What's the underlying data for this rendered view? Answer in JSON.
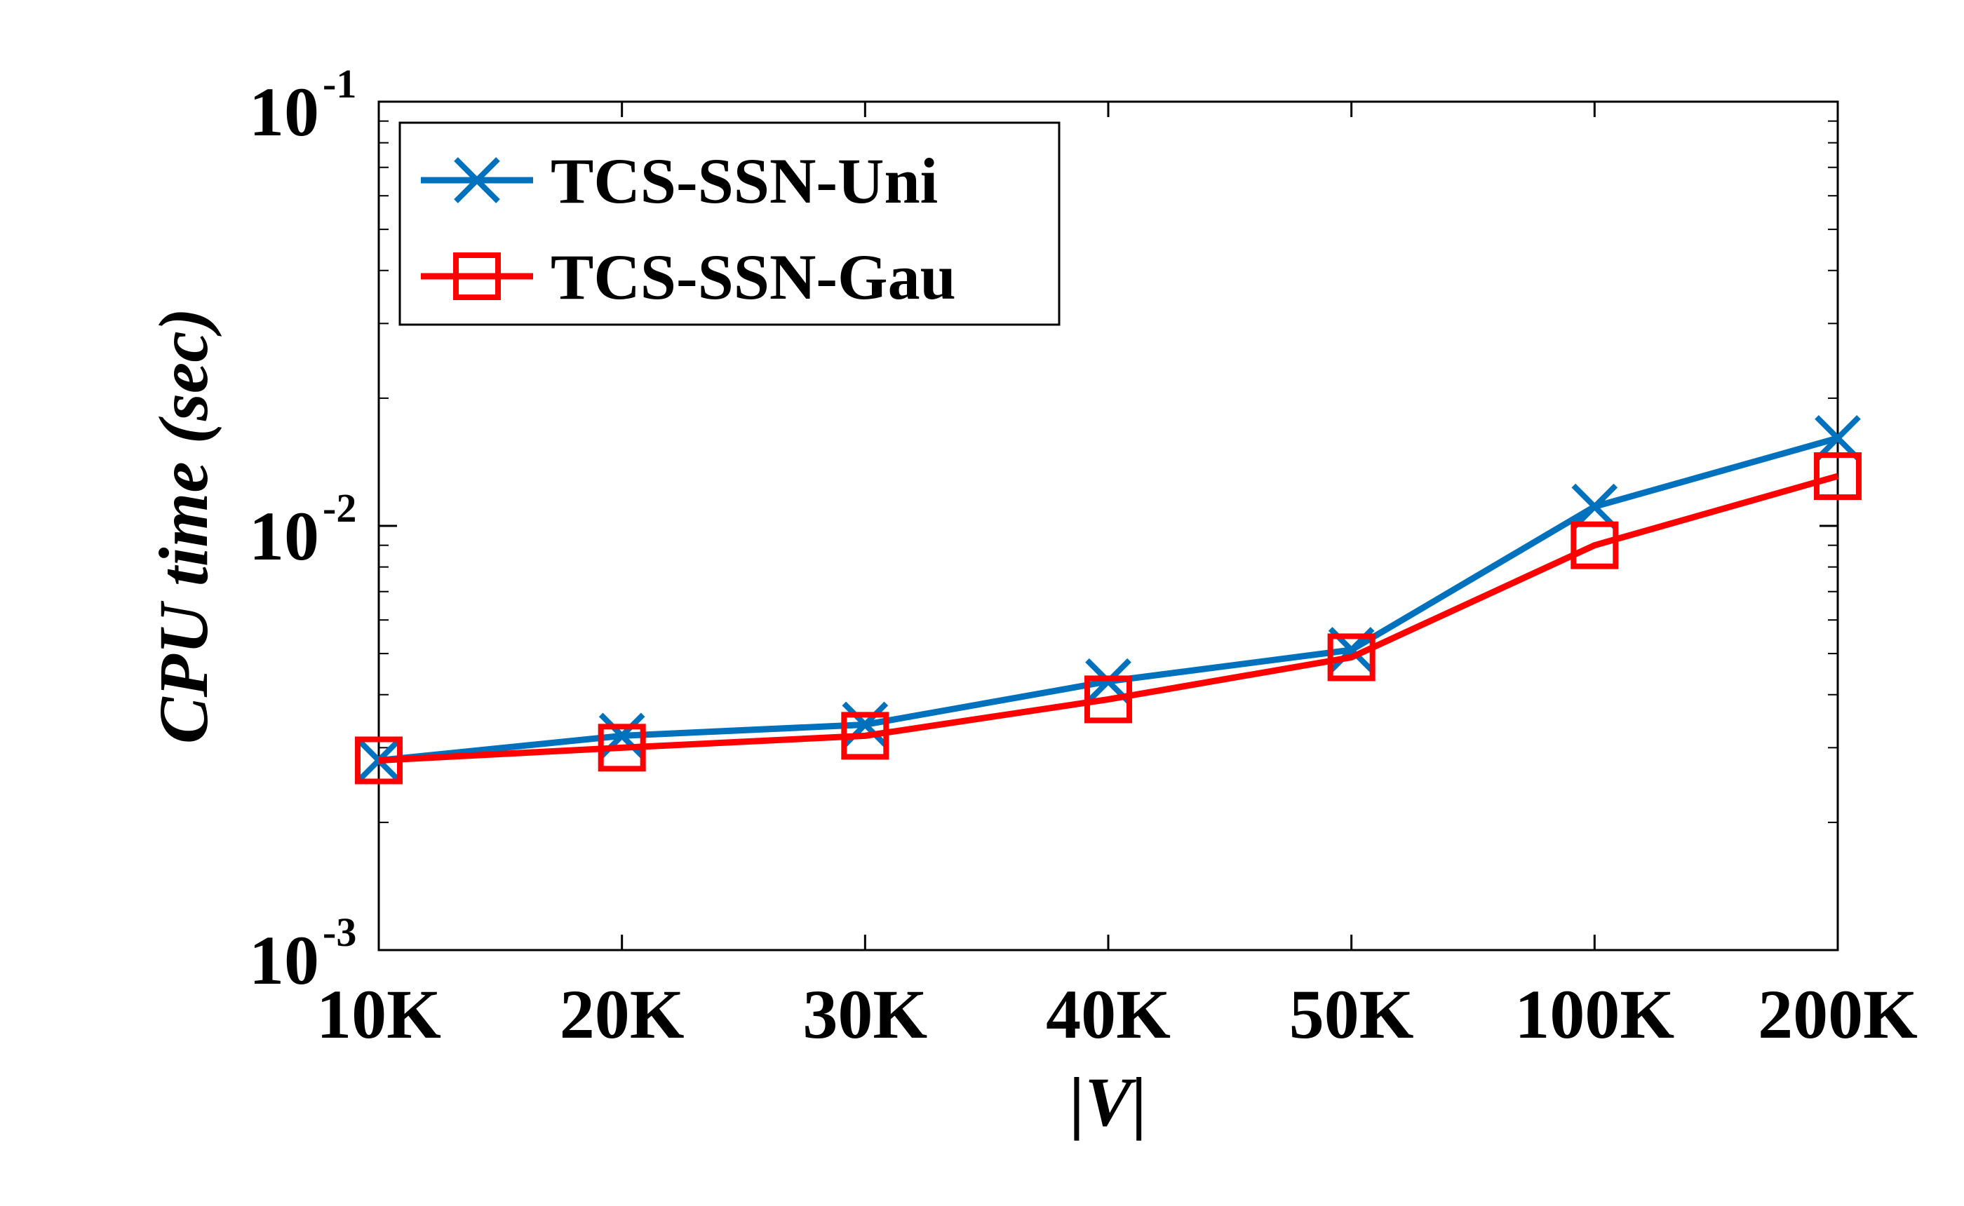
{
  "chart_data": {
    "type": "line",
    "xlabel": "|V|",
    "ylabel": "CPU time (sec)",
    "categories": [
      "10K",
      "20K",
      "30K",
      "40K",
      "50K",
      "100K",
      "200K"
    ],
    "y_scale": "log",
    "ylim": [
      0.001,
      0.1
    ],
    "y_ticks": [
      {
        "value": 0.001,
        "base": "10",
        "exp": "-3"
      },
      {
        "value": 0.01,
        "base": "10",
        "exp": "-2"
      },
      {
        "value": 0.1,
        "base": "10",
        "exp": "-1"
      }
    ],
    "grid": false,
    "legend_position": "top-left",
    "series": [
      {
        "name": "TCS-SSN-Uni",
        "color": "#0072BD",
        "marker": "x",
        "values": [
          0.0028,
          0.0032,
          0.0034,
          0.0043,
          0.0051,
          0.0111,
          0.0161
        ]
      },
      {
        "name": "TCS-SSN-Gau",
        "color": "#FF0000",
        "marker": "square",
        "values": [
          0.0028,
          0.003,
          0.0032,
          0.0039,
          0.0049,
          0.009,
          0.0131
        ]
      }
    ]
  }
}
